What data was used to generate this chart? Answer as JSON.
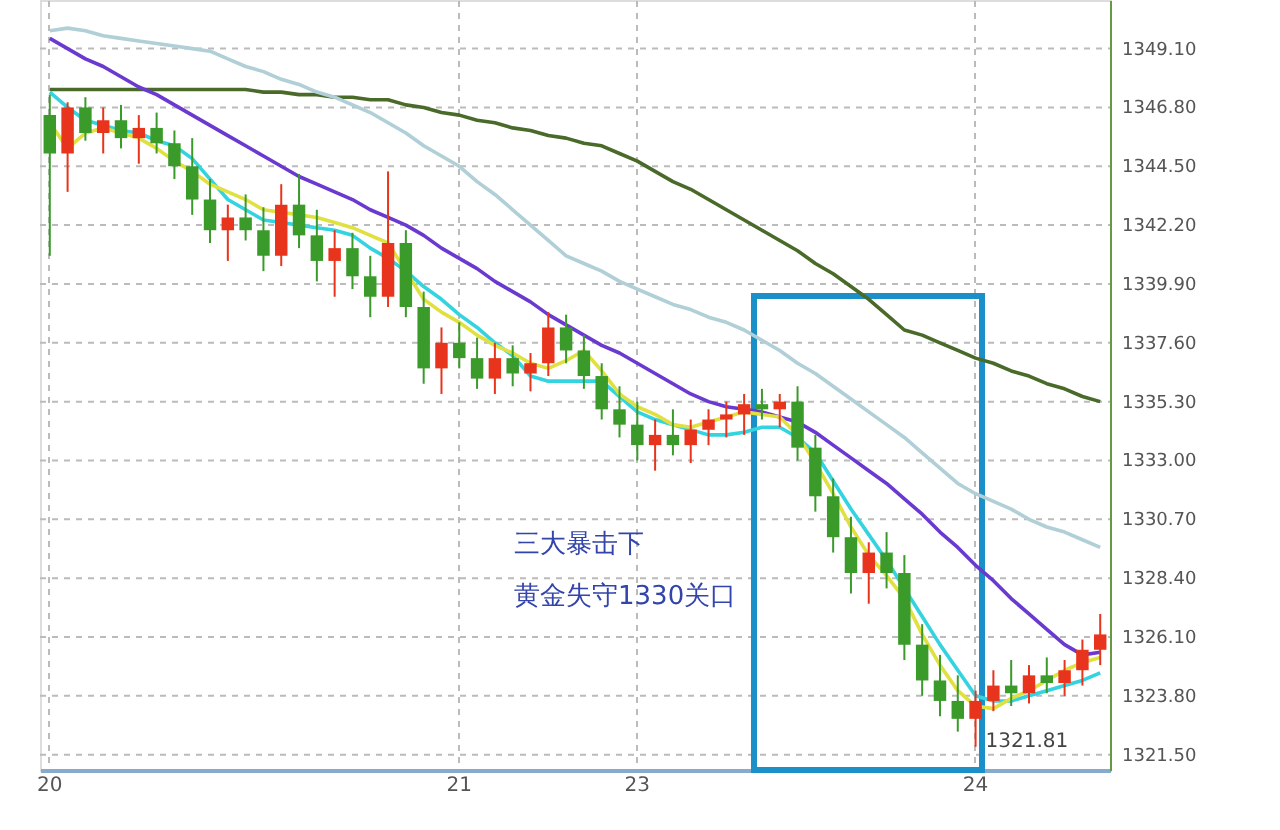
{
  "chart_data": {
    "type": "candlestick",
    "categories": [
      "20",
      null,
      null,
      null,
      null,
      null,
      null,
      null,
      null,
      null,
      null,
      null,
      null,
      null,
      null,
      null,
      null,
      null,
      null,
      null,
      null,
      null,
      null,
      "21",
      null,
      null,
      null,
      null,
      null,
      null,
      null,
      null,
      null,
      "23",
      null,
      null,
      null,
      null,
      null,
      null,
      null,
      null,
      null,
      null,
      null,
      null,
      null,
      null,
      null,
      null,
      null,
      null,
      "24",
      null,
      null,
      null,
      null,
      null,
      null,
      null
    ],
    "ohlc": [
      [
        1346.5,
        1347.3,
        1341.0,
        1345.0
      ],
      [
        1345.0,
        1347.0,
        1343.5,
        1346.8
      ],
      [
        1346.8,
        1347.2,
        1345.5,
        1345.8
      ],
      [
        1345.8,
        1346.8,
        1345.0,
        1346.3
      ],
      [
        1346.3,
        1346.9,
        1345.2,
        1345.6
      ],
      [
        1345.6,
        1346.5,
        1344.6,
        1346.0
      ],
      [
        1346.0,
        1346.6,
        1345.0,
        1345.4
      ],
      [
        1345.4,
        1345.9,
        1344.0,
        1344.5
      ],
      [
        1344.5,
        1345.6,
        1342.6,
        1343.2
      ],
      [
        1343.2,
        1344.0,
        1341.5,
        1342.0
      ],
      [
        1342.0,
        1343.0,
        1340.8,
        1342.5
      ],
      [
        1342.5,
        1343.4,
        1341.6,
        1342.0
      ],
      [
        1342.0,
        1342.9,
        1340.4,
        1341.0
      ],
      [
        1341.0,
        1343.8,
        1340.6,
        1343.0
      ],
      [
        1343.0,
        1344.2,
        1341.3,
        1341.8
      ],
      [
        1341.8,
        1342.8,
        1340.0,
        1340.8
      ],
      [
        1340.8,
        1342.0,
        1339.4,
        1341.3
      ],
      [
        1341.3,
        1341.9,
        1339.7,
        1340.2
      ],
      [
        1340.2,
        1341.0,
        1338.6,
        1339.4
      ],
      [
        1339.4,
        1344.3,
        1339.0,
        1341.5
      ],
      [
        1341.5,
        1342.0,
        1338.6,
        1339.0
      ],
      [
        1339.0,
        1339.6,
        1336.0,
        1336.6
      ],
      [
        1336.6,
        1338.2,
        1335.6,
        1337.6
      ],
      [
        1337.6,
        1338.4,
        1336.6,
        1337.0
      ],
      [
        1337.0,
        1337.8,
        1335.8,
        1336.2
      ],
      [
        1336.2,
        1337.6,
        1335.6,
        1337.0
      ],
      [
        1337.0,
        1337.5,
        1335.9,
        1336.4
      ],
      [
        1336.4,
        1337.2,
        1335.7,
        1336.8
      ],
      [
        1336.8,
        1338.8,
        1336.3,
        1338.2
      ],
      [
        1338.2,
        1338.7,
        1336.8,
        1337.3
      ],
      [
        1337.3,
        1337.9,
        1335.8,
        1336.3
      ],
      [
        1336.3,
        1336.8,
        1334.6,
        1335.0
      ],
      [
        1335.0,
        1335.9,
        1333.9,
        1334.4
      ],
      [
        1334.4,
        1335.3,
        1333.0,
        1333.6
      ],
      [
        1333.6,
        1334.6,
        1332.6,
        1334.0
      ],
      [
        1334.0,
        1335.0,
        1333.2,
        1333.6
      ],
      [
        1333.6,
        1334.6,
        1332.9,
        1334.2
      ],
      [
        1334.2,
        1335.0,
        1333.6,
        1334.6
      ],
      [
        1334.6,
        1335.3,
        1333.9,
        1334.8
      ],
      [
        1334.8,
        1335.6,
        1334.0,
        1335.2
      ],
      [
        1335.2,
        1335.8,
        1334.6,
        1335.0
      ],
      [
        1335.0,
        1335.6,
        1334.3,
        1335.3
      ],
      [
        1335.3,
        1335.9,
        1333.0,
        1333.5
      ],
      [
        1333.5,
        1334.0,
        1331.0,
        1331.6
      ],
      [
        1331.6,
        1332.3,
        1329.4,
        1330.0
      ],
      [
        1330.0,
        1330.8,
        1327.8,
        1328.6
      ],
      [
        1328.6,
        1329.8,
        1327.4,
        1329.4
      ],
      [
        1329.4,
        1330.2,
        1328.0,
        1328.6
      ],
      [
        1328.6,
        1329.3,
        1325.2,
        1325.8
      ],
      [
        1325.8,
        1326.6,
        1323.8,
        1324.4
      ],
      [
        1324.4,
        1325.4,
        1323.0,
        1323.6
      ],
      [
        1323.6,
        1324.6,
        1322.4,
        1322.9
      ],
      [
        1322.9,
        1324.0,
        1321.81,
        1323.6
      ],
      [
        1323.6,
        1324.8,
        1323.2,
        1324.2
      ],
      [
        1324.2,
        1325.2,
        1323.4,
        1323.9
      ],
      [
        1323.9,
        1325.0,
        1323.5,
        1324.6
      ],
      [
        1324.6,
        1325.3,
        1323.9,
        1324.3
      ],
      [
        1324.3,
        1325.2,
        1323.8,
        1324.8
      ],
      [
        1324.8,
        1326.0,
        1324.2,
        1325.6
      ],
      [
        1325.6,
        1327.0,
        1325.0,
        1326.2
      ]
    ],
    "colors": [
      "#3a9a2a",
      "#e8341c",
      "#3a9a2a",
      "#e8341c",
      "#3a9a2a",
      "#e8341c",
      "#3a9a2a",
      "#3a9a2a",
      "#3a9a2a",
      "#3a9a2a",
      "#e8341c",
      "#3a9a2a",
      "#3a9a2a",
      "#e8341c",
      "#3a9a2a",
      "#3a9a2a",
      "#e8341c",
      "#3a9a2a",
      "#3a9a2a",
      "#e8341c",
      "#3a9a2a",
      "#3a9a2a",
      "#e8341c",
      "#3a9a2a",
      "#3a9a2a",
      "#e8341c",
      "#3a9a2a",
      "#e8341c",
      "#e8341c",
      "#3a9a2a",
      "#3a9a2a",
      "#3a9a2a",
      "#3a9a2a",
      "#3a9a2a",
      "#e8341c",
      "#3a9a2a",
      "#e8341c",
      "#e8341c",
      "#e8341c",
      "#e8341c",
      "#3a9a2a",
      "#e8341c",
      "#3a9a2a",
      "#3a9a2a",
      "#3a9a2a",
      "#3a9a2a",
      "#e8341c",
      "#3a9a2a",
      "#3a9a2a",
      "#3a9a2a",
      "#3a9a2a",
      "#3a9a2a",
      "#e8341c",
      "#e8341c",
      "#3a9a2a",
      "#e8341c",
      "#3a9a2a",
      "#e8341c",
      "#e8341c",
      "#e8341c"
    ],
    "series": [
      {
        "type": "line",
        "color": "#4a6a2a",
        "values": [
          1347.5,
          1347.5,
          1347.5,
          1347.5,
          1347.5,
          1347.5,
          1347.5,
          1347.5,
          1347.5,
          1347.5,
          1347.5,
          1347.5,
          1347.4,
          1347.4,
          1347.3,
          1347.3,
          1347.2,
          1347.2,
          1347.1,
          1347.1,
          1346.9,
          1346.8,
          1346.6,
          1346.5,
          1346.3,
          1346.2,
          1346.0,
          1345.9,
          1345.7,
          1345.6,
          1345.4,
          1345.3,
          1345.0,
          1344.7,
          1344.3,
          1343.9,
          1343.6,
          1343.2,
          1342.8,
          1342.4,
          1342.0,
          1341.6,
          1341.2,
          1340.7,
          1340.3,
          1339.8,
          1339.3,
          1338.7,
          1338.1,
          1337.9,
          1337.6,
          1337.3,
          1337.0,
          1336.8,
          1336.5,
          1336.3,
          1336.0,
          1335.8,
          1335.5,
          1335.3
        ]
      },
      {
        "type": "line",
        "color": "#b0cfd6",
        "values": [
          1349.8,
          1349.9,
          1349.8,
          1349.6,
          1349.5,
          1349.4,
          1349.3,
          1349.2,
          1349.1,
          1349.0,
          1348.7,
          1348.4,
          1348.2,
          1347.9,
          1347.7,
          1347.4,
          1347.2,
          1346.9,
          1346.6,
          1346.2,
          1345.8,
          1345.3,
          1344.9,
          1344.5,
          1343.9,
          1343.4,
          1342.8,
          1342.2,
          1341.6,
          1341.0,
          1340.7,
          1340.4,
          1340.0,
          1339.7,
          1339.4,
          1339.1,
          1338.9,
          1338.6,
          1338.4,
          1338.1,
          1337.7,
          1337.3,
          1336.8,
          1336.4,
          1335.9,
          1335.4,
          1334.9,
          1334.4,
          1333.9,
          1333.3,
          1332.7,
          1332.1,
          1331.7,
          1331.4,
          1331.1,
          1330.7,
          1330.4,
          1330.2,
          1329.9,
          1329.6
        ]
      },
      {
        "type": "line",
        "color": "#6a3ad0",
        "values": [
          1349.5,
          1349.1,
          1348.7,
          1348.4,
          1348.0,
          1347.6,
          1347.3,
          1346.9,
          1346.5,
          1346.1,
          1345.7,
          1345.3,
          1344.9,
          1344.5,
          1344.1,
          1343.8,
          1343.5,
          1343.2,
          1342.8,
          1342.5,
          1342.2,
          1341.8,
          1341.3,
          1340.9,
          1340.5,
          1340.0,
          1339.6,
          1339.2,
          1338.7,
          1338.3,
          1337.9,
          1337.5,
          1337.2,
          1336.8,
          1336.4,
          1336.0,
          1335.6,
          1335.3,
          1335.1,
          1335.0,
          1334.9,
          1334.7,
          1334.5,
          1334.1,
          1333.6,
          1333.1,
          1332.6,
          1332.1,
          1331.5,
          1330.9,
          1330.2,
          1329.6,
          1328.9,
          1328.3,
          1327.6,
          1327.0,
          1326.4,
          1325.8,
          1325.4,
          1325.5
        ]
      },
      {
        "type": "line",
        "color": "#33d4e0",
        "values": [
          1347.4,
          1346.8,
          1346.3,
          1346.1,
          1345.9,
          1345.8,
          1345.5,
          1345.3,
          1344.8,
          1344.0,
          1343.2,
          1342.8,
          1342.4,
          1342.3,
          1342.2,
          1342.1,
          1342.0,
          1341.8,
          1341.3,
          1340.9,
          1340.4,
          1339.8,
          1339.3,
          1338.7,
          1338.2,
          1337.6,
          1337.1,
          1336.3,
          1336.1,
          1336.1,
          1336.1,
          1336.1,
          1335.5,
          1334.9,
          1334.6,
          1334.4,
          1334.2,
          1334.0,
          1334.0,
          1334.1,
          1334.3,
          1334.3,
          1333.9,
          1333.3,
          1332.2,
          1331.1,
          1330.1,
          1329.1,
          1328.0,
          1326.9,
          1325.8,
          1324.8,
          1323.8,
          1323.6,
          1323.6,
          1323.8,
          1324.0,
          1324.2,
          1324.4,
          1324.7
        ]
      },
      {
        "type": "line",
        "color": "#e0e040",
        "values": [
          1346.2,
          1345.2,
          1345.8,
          1346.0,
          1345.8,
          1345.6,
          1345.2,
          1344.7,
          1344.3,
          1343.8,
          1343.5,
          1343.2,
          1342.8,
          1342.7,
          1342.6,
          1342.5,
          1342.3,
          1342.1,
          1341.8,
          1341.5,
          1340.4,
          1339.3,
          1338.8,
          1338.4,
          1337.9,
          1337.5,
          1337.2,
          1336.8,
          1336.6,
          1336.9,
          1337.3,
          1336.5,
          1335.6,
          1335.1,
          1334.8,
          1334.4,
          1334.3,
          1334.5,
          1334.7,
          1334.9,
          1334.8,
          1334.7,
          1334.0,
          1332.9,
          1331.7,
          1330.4,
          1329.3,
          1328.5,
          1327.6,
          1326.2,
          1325.0,
          1324.0,
          1323.4,
          1323.3,
          1323.7,
          1324.0,
          1324.4,
          1324.8,
          1325.1,
          1325.3
        ]
      }
    ],
    "ylim": [
      1320.9,
      1351.0
    ],
    "yticks": [
      {
        "value": 1321.5,
        "label": "1321.50"
      },
      {
        "value": 1323.8,
        "label": "1323.80"
      },
      {
        "value": 1326.1,
        "label": "1326.10"
      },
      {
        "value": 1328.4,
        "label": "1328.40"
      },
      {
        "value": 1330.7,
        "label": "1330.70"
      },
      {
        "value": 1333.0,
        "label": "1333.00"
      },
      {
        "value": 1335.3,
        "label": "1335.30"
      },
      {
        "value": 1337.6,
        "label": "1337.60"
      },
      {
        "value": 1339.9,
        "label": "1339.90"
      },
      {
        "value": 1342.2,
        "label": "1342.20"
      },
      {
        "value": 1344.5,
        "label": "1344.50"
      },
      {
        "value": 1346.8,
        "label": "1346.80"
      },
      {
        "value": 1349.1,
        "label": "1349.10"
      }
    ],
    "grid": true,
    "annotations": [
      "三大暴击下",
      "黄金失守1330关口",
      {
        "text": "1321.81",
        "x": "24",
        "y": 1321.81
      }
    ]
  }
}
